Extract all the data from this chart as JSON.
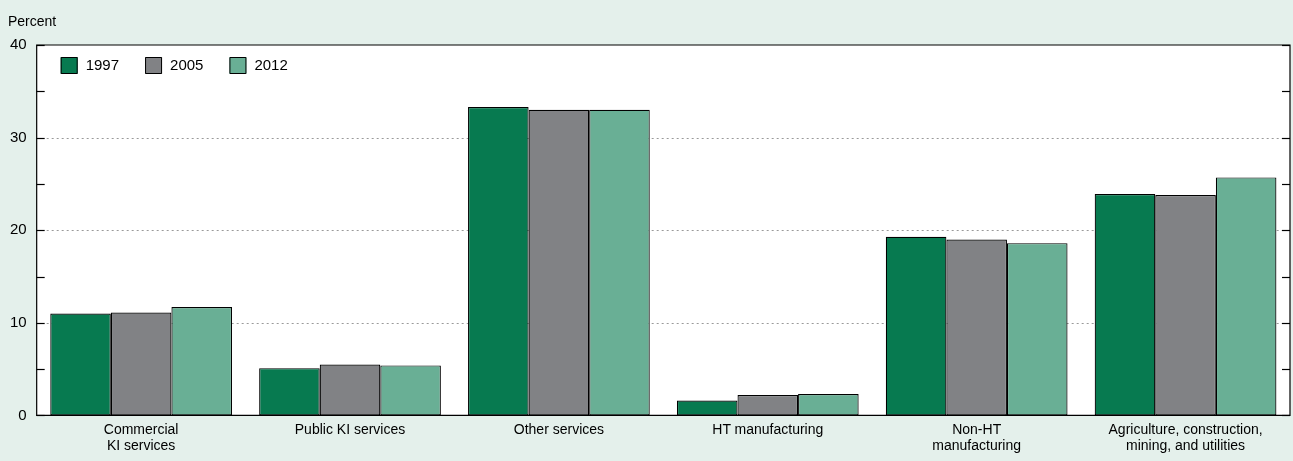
{
  "chart_data": {
    "type": "bar",
    "ylabel": "Percent",
    "categories": [
      "Commercial\nKI services",
      "Public KI services",
      "Other services",
      "HT manufacturing",
      "Non-HT\nmanufacturing",
      "Agriculture, construction,\nmining, and utilities"
    ],
    "series": [
      {
        "name": "1997",
        "color": "#077a50",
        "values": [
          11.0,
          5.1,
          33.3,
          1.6,
          19.3,
          23.9
        ]
      },
      {
        "name": "2005",
        "color": "#818285",
        "values": [
          11.1,
          5.5,
          33.0,
          2.2,
          19.0,
          23.8
        ]
      },
      {
        "name": "2012",
        "color": "#69af95",
        "values": [
          11.7,
          5.4,
          33.0,
          2.3,
          18.6,
          25.7
        ]
      }
    ],
    "ylim": [
      0,
      40
    ],
    "yticks": [
      0,
      {
        "value": 5,
        "label": null
      },
      10,
      {
        "value": 15,
        "label": null
      },
      20,
      {
        "value": 25,
        "label": null
      },
      30,
      {
        "value": 35,
        "label": null
      },
      40
    ],
    "grid": "y",
    "legend": "top left"
  }
}
